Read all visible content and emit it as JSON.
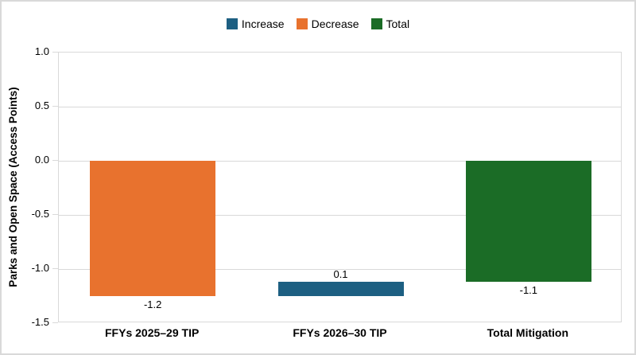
{
  "legend": {
    "position": "top-center",
    "items": [
      {
        "label": "Increase",
        "color": "#1D5F82"
      },
      {
        "label": "Decrease",
        "color": "#E8722E"
      },
      {
        "label": "Total",
        "color": "#1B6C26"
      }
    ]
  },
  "chart_data": {
    "type": "bar",
    "subtype": "waterfall",
    "title": "",
    "xlabel": "",
    "ylabel": "Parks and Open Space (Access Points)",
    "ylim": [
      -1.5,
      1.0
    ],
    "yticks": [
      1.0,
      0.5,
      0.0,
      -0.5,
      -1.0,
      -1.5
    ],
    "grid": true,
    "legend_position": "top",
    "categories": [
      "FFYs 2025–29 TIP",
      "FFYs 2026–30 TIP",
      "Total Mitigation"
    ],
    "values": [
      -1.2,
      0.1,
      -1.1
    ],
    "bars": [
      {
        "category": "FFYs 2025–29 TIP",
        "series": "Decrease",
        "value": -1.2,
        "label": "-1.2",
        "label_position": "below",
        "color": "#E8722E",
        "span": [
          0,
          -1.25
        ]
      },
      {
        "category": "FFYs 2026–30 TIP",
        "series": "Increase",
        "value": 0.1,
        "label": "0.1",
        "label_position": "above",
        "color": "#1D5F82",
        "span": [
          -1.25,
          -1.12
        ]
      },
      {
        "category": "Total Mitigation",
        "series": "Total",
        "value": -1.1,
        "label": "-1.1",
        "label_position": "below",
        "color": "#1B6C26",
        "span": [
          0,
          -1.12
        ]
      }
    ],
    "colors": {
      "grid": "#D9D9D9",
      "frame": "#D9D9D9",
      "text": "#000000"
    }
  }
}
